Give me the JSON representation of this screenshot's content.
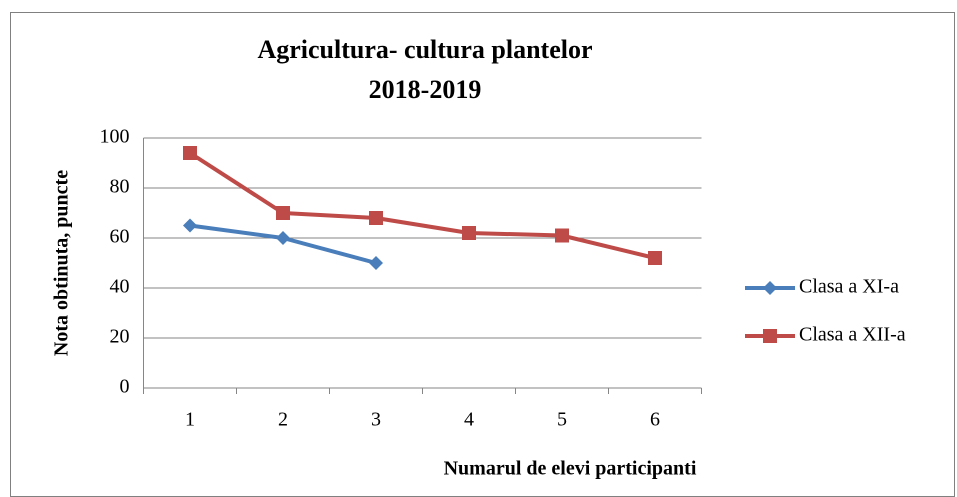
{
  "chart_data": {
    "type": "line",
    "title": [
      "Agricultura- cultura plantelor",
      "2018-2019"
    ],
    "x_label": "Numarul de elevi participanti",
    "y_label": "Nota obtinuta, puncte",
    "categories": [
      1,
      2,
      3,
      4,
      5,
      6
    ],
    "series": [
      {
        "name": "Clasa a XI-a",
        "color": "#4a7ebb",
        "marker": "diamond",
        "values": [
          65,
          60,
          50,
          null,
          null,
          null
        ]
      },
      {
        "name": "Clasa a XII-a",
        "color": "#be4b48",
        "marker": "square",
        "values": [
          94,
          70,
          68,
          62,
          61,
          52
        ]
      }
    ],
    "ylim": [
      0,
      100
    ],
    "yticks": [
      0,
      20,
      40,
      60,
      80,
      100
    ],
    "grid": true,
    "legend": "right"
  }
}
